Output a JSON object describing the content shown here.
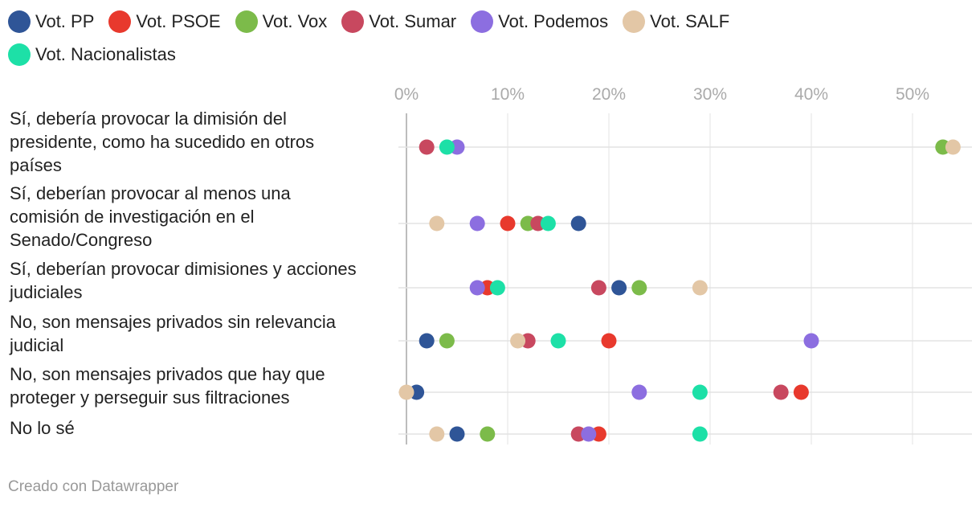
{
  "legend": {
    "items": [
      {
        "name": "Vot. PP",
        "color": "#2f5597"
      },
      {
        "name": "Vot. PSOE",
        "color": "#e8392d"
      },
      {
        "name": "Vot. Vox",
        "color": "#7cbb4a"
      },
      {
        "name": "Vot. Sumar",
        "color": "#c8485f"
      },
      {
        "name": "Vot. Podemos",
        "color": "#8c6ee0"
      },
      {
        "name": "Vot. SALF",
        "color": "#e3c7a6"
      },
      {
        "name": "Vot. Nacionalistas",
        "color": "#1de0a7"
      }
    ]
  },
  "chart_data": {
    "type": "scatter",
    "title": "",
    "xlabel": "",
    "ylabel": "",
    "xlim": [
      0,
      55
    ],
    "ticks": [
      0,
      10,
      20,
      30,
      40,
      50
    ],
    "tick_labels": [
      "0%",
      "10%",
      "20%",
      "30%",
      "40%",
      "50%"
    ],
    "grid": true,
    "legend_position": "top",
    "categories": [
      "Sí, debería provocar la dimisión del presidente, como ha sucedido en otros países",
      "Sí, deberían provocar al menos una comisión de investigación en el Senado/Congreso",
      "Sí, deberían provocar dimisiones y acciones judiciales",
      "No, son mensajes privados sin relevancia judicial",
      "No, son mensajes privados que hay que proteger y perseguir sus filtraciones",
      "No lo sé"
    ],
    "series": [
      {
        "name": "Vot. PP",
        "values": [
          null,
          17,
          21,
          2,
          1,
          5
        ]
      },
      {
        "name": "Vot. PSOE",
        "values": [
          null,
          10,
          8,
          20,
          39,
          19
        ]
      },
      {
        "name": "Vot. Vox",
        "values": [
          53,
          12,
          23,
          4,
          null,
          8
        ]
      },
      {
        "name": "Vot. Sumar",
        "values": [
          2,
          13,
          19,
          12,
          37,
          17
        ]
      },
      {
        "name": "Vot. Podemos",
        "values": [
          5,
          7,
          7,
          40,
          23,
          18
        ]
      },
      {
        "name": "Vot. SALF",
        "values": [
          54,
          3,
          29,
          11,
          0,
          3
        ]
      },
      {
        "name": "Vot. Nacionalistas",
        "values": [
          4,
          14,
          9,
          15,
          29,
          29
        ]
      }
    ]
  },
  "footer": {
    "text": "Creado con Datawrapper"
  }
}
